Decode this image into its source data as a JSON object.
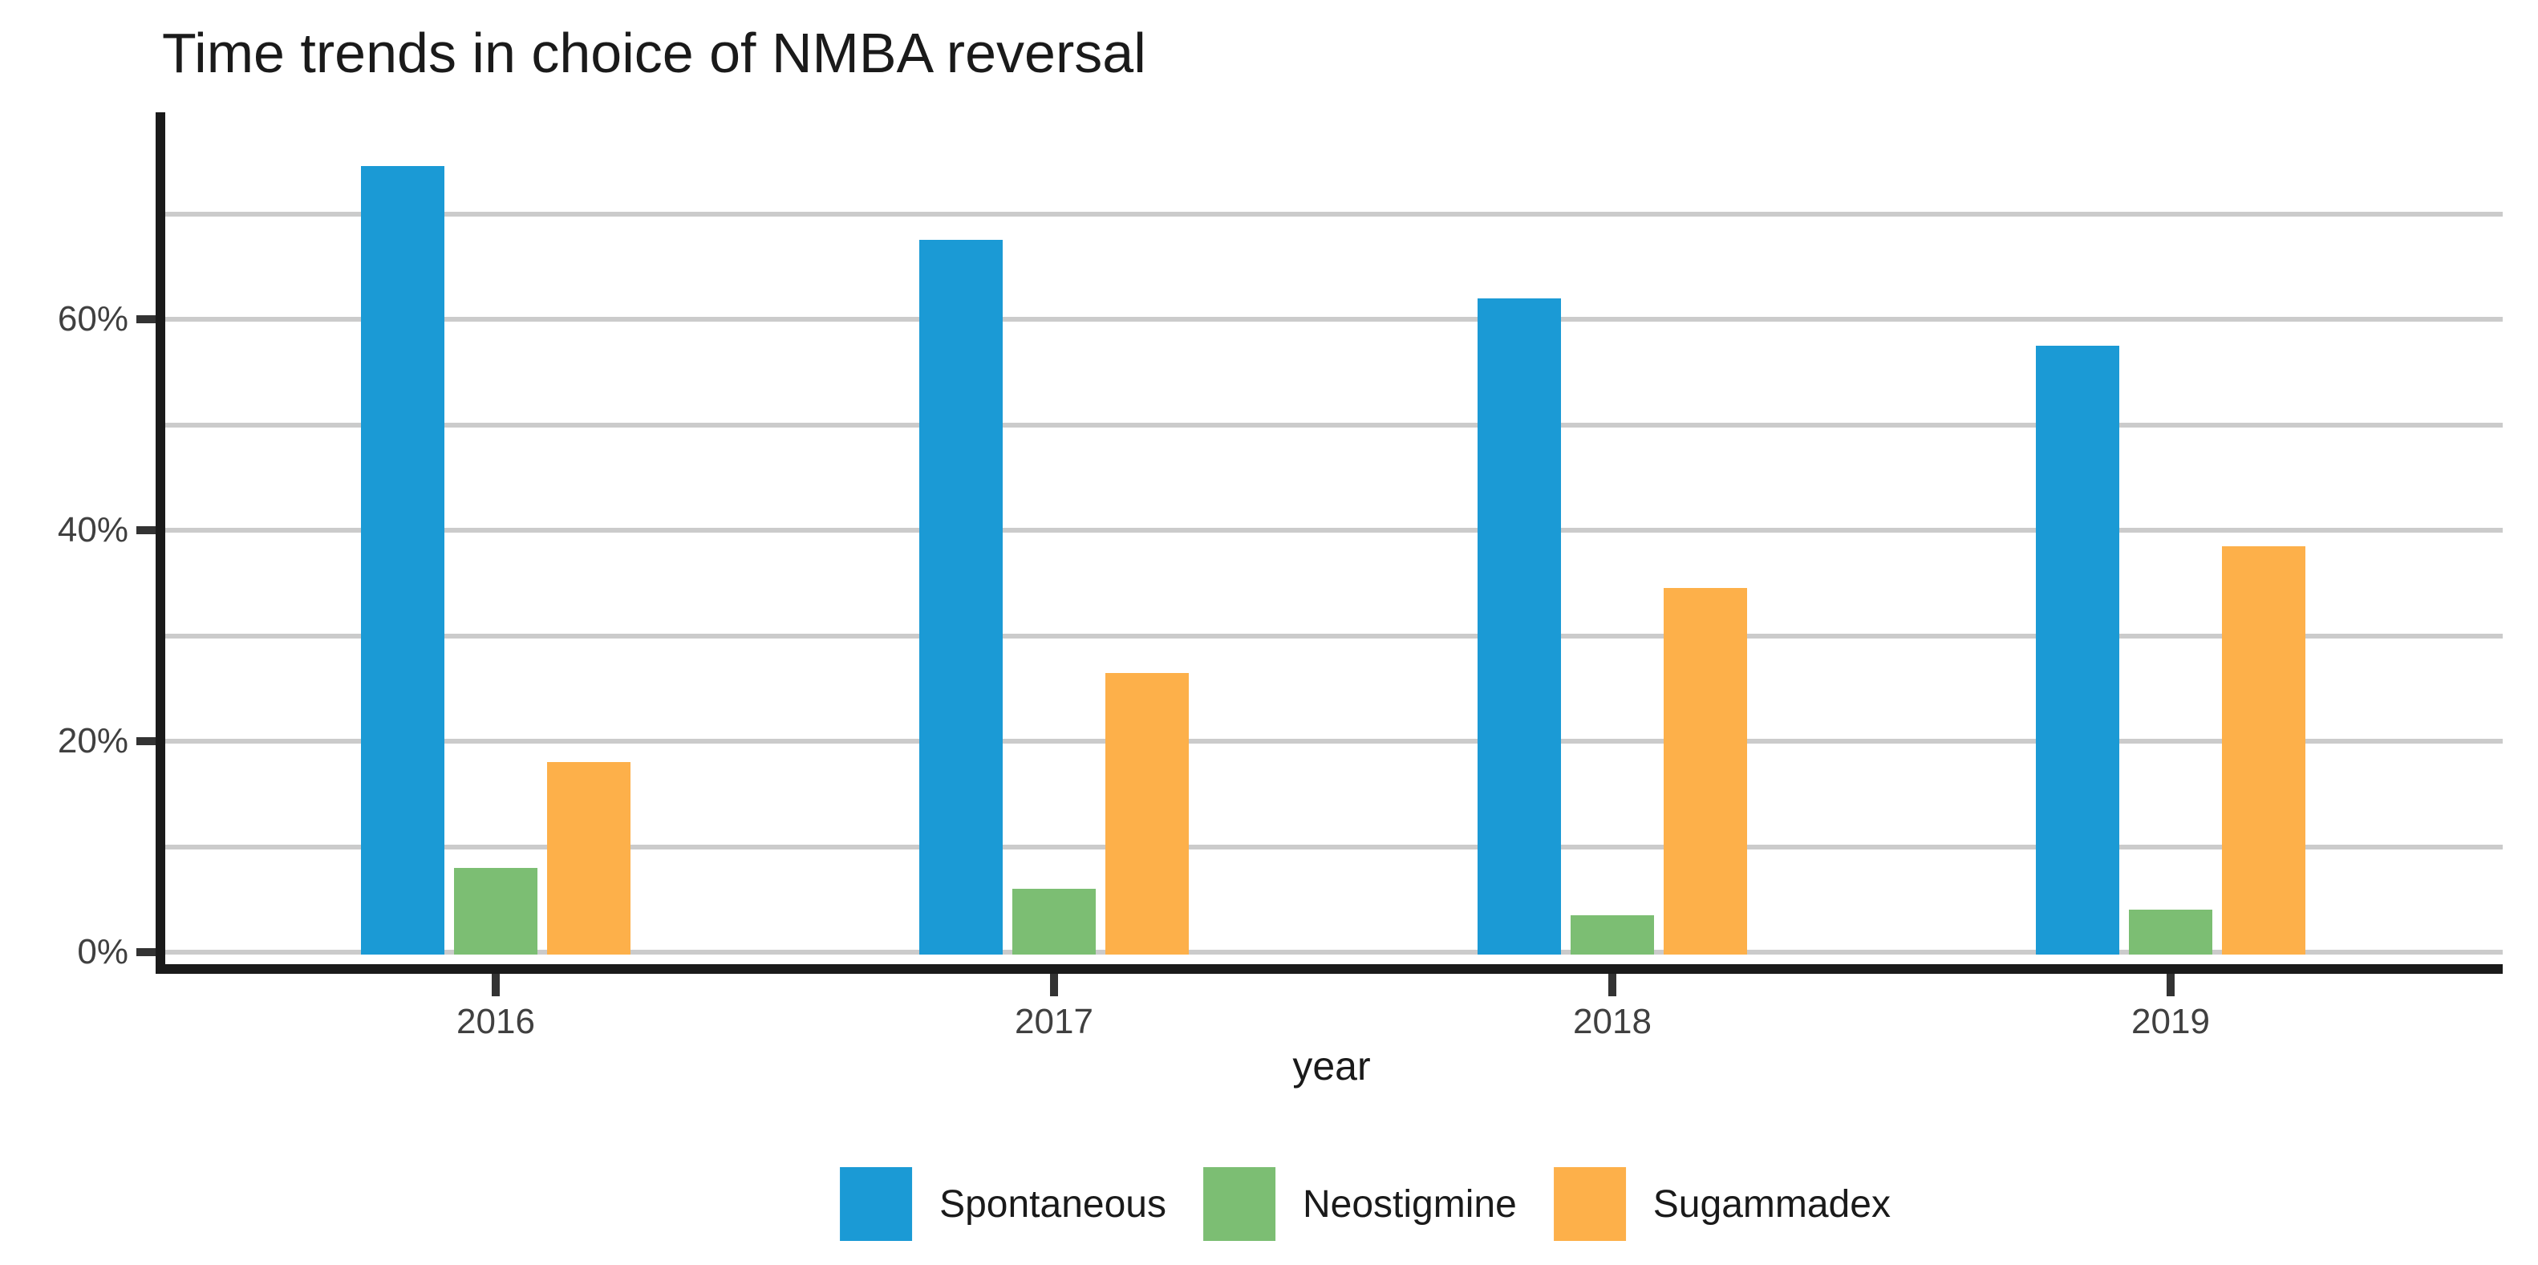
{
  "title": "Time trends in choice of NMBA reversal",
  "chart_data": {
    "type": "bar",
    "categories": [
      "2016",
      "2017",
      "2018",
      "2019"
    ],
    "series": [
      {
        "name": "Spontaneous",
        "color": "#1B9AD5",
        "values": [
          74.5,
          67.5,
          62,
          57.5
        ]
      },
      {
        "name": "Neostigmine",
        "color": "#7CBE73",
        "values": [
          8,
          6,
          3.5,
          4
        ]
      },
      {
        "name": "Sugammadex",
        "color": "#FDB04A",
        "values": [
          18,
          26.5,
          34.5,
          38.5
        ]
      }
    ],
    "xlabel": "year",
    "ylabel": "",
    "y_axis": {
      "tick_values": [
        0,
        20,
        40,
        60
      ],
      "tick_labels": [
        "0%",
        "20%",
        "40%",
        "60%"
      ],
      "minor_gridline_values": [
        10,
        30,
        50,
        70
      ],
      "unit": "percent"
    },
    "ylim": [
      0,
      79
    ],
    "grid": true,
    "legend_position": "bottom",
    "legend": [
      "Spontaneous",
      "Neostigmine",
      "Sugammadex"
    ]
  },
  "colors": {
    "background": "#ffffff",
    "gridline": "#cbcbcb",
    "axis_line": "#1a1a1a",
    "axis_text": "#404040",
    "title_text": "#1a1a1a"
  }
}
